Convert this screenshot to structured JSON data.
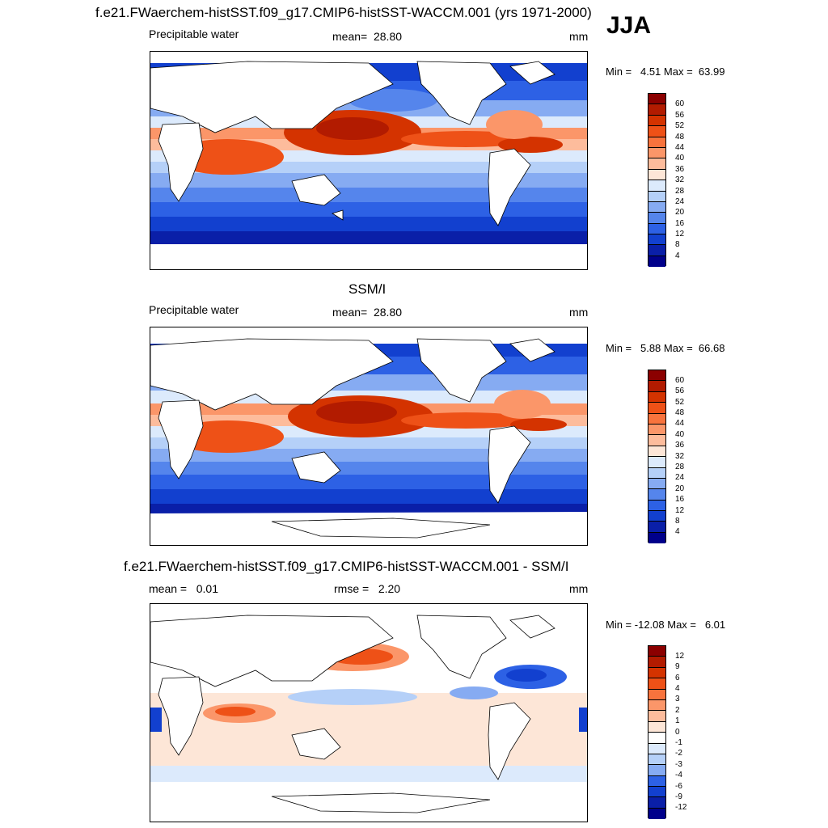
{
  "season": "JJA",
  "panels": [
    {
      "title": "f.e21.FWaerchem-histSST.f09_g17.CMIP6-histSST-WACCM.001 (yrs 1971-2000)",
      "left_label": "Precipitable water",
      "center_label": "mean=  28.80",
      "units": "mm",
      "minmax": "Min =   4.51 Max =  63.99",
      "colorbar": {
        "labels": [
          "60",
          "56",
          "52",
          "48",
          "44",
          "40",
          "36",
          "32",
          "28",
          "24",
          "20",
          "16",
          "12",
          "8",
          "4"
        ],
        "colors": [
          "#8b0000",
          "#b21b00",
          "#d43300",
          "#ee5117",
          "#f8733d",
          "#fb9669",
          "#fdbc9c",
          "#fde6d7",
          "#dceafc",
          "#b5d0f8",
          "#86abf2",
          "#5585ec",
          "#2d61e5",
          "#1240cf",
          "#0a1fa8",
          "#00008b"
        ]
      }
    },
    {
      "title": "SSM/I",
      "left_label": "Precipitable water",
      "center_label": "mean=  28.80",
      "units": "mm",
      "minmax": "Min =   5.88 Max =  66.68",
      "colorbar": {
        "labels": [
          "60",
          "56",
          "52",
          "48",
          "44",
          "40",
          "36",
          "32",
          "28",
          "24",
          "20",
          "16",
          "12",
          "8",
          "4"
        ],
        "colors": [
          "#8b0000",
          "#b21b00",
          "#d43300",
          "#ee5117",
          "#f8733d",
          "#fb9669",
          "#fdbc9c",
          "#fde6d7",
          "#dceafc",
          "#b5d0f8",
          "#86abf2",
          "#5585ec",
          "#2d61e5",
          "#1240cf",
          "#0a1fa8",
          "#00008b"
        ]
      }
    },
    {
      "title": "f.e21.FWaerchem-histSST.f09_g17.CMIP6-histSST-WACCM.001 - SSM/I",
      "left_label": "mean =   0.01",
      "center_label": "rmse =   2.20",
      "units": "mm",
      "minmax": "Min = -12.08 Max =   6.01",
      "colorbar": {
        "labels": [
          "12",
          "9",
          "6",
          "4",
          "3",
          "2",
          "1",
          "0",
          "-1",
          "-2",
          "-3",
          "-4",
          "-6",
          "-9",
          "-12"
        ],
        "colors": [
          "#8b0000",
          "#b21b00",
          "#d43300",
          "#ee5117",
          "#f8733d",
          "#fb9669",
          "#fdbc9c",
          "#fde6d7",
          "#ffffff",
          "#dceafc",
          "#b5d0f8",
          "#86abf2",
          "#2d61e5",
          "#1240cf",
          "#0a1fa8",
          "#00008b"
        ]
      }
    }
  ]
}
